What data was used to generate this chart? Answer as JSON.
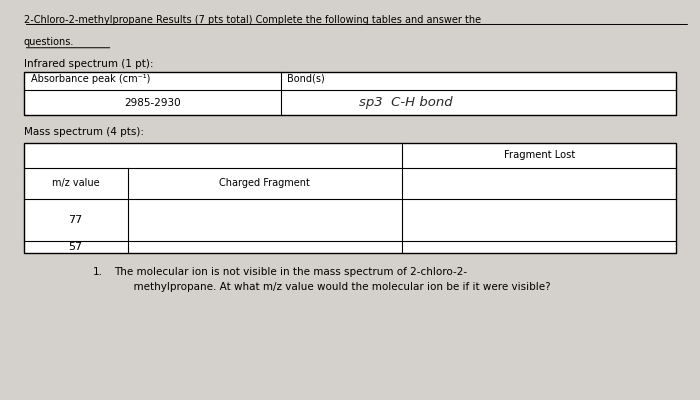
{
  "background_color": "#d4d0cb",
  "title_line1": "2-Chloro-2-methylpropane Results (7 pts total) Complete the following tables and answer the",
  "title_line2": "questions.",
  "ir_label": "Infrared spectrum (1 pt):",
  "ir_col1_header": "Absorbance peak (cm⁻¹)",
  "ir_col2_header": "Bond(s)",
  "ir_row1_col1": "2985-2930",
  "ir_row1_col2_handwritten": "sp3  C-H bond",
  "mass_label": "Mass spectrum (4 pts):",
  "mass_col1_header": "m/z value",
  "mass_col2_header": "Charged Fragment",
  "mass_col3_header": "Fragment Lost",
  "mass_row1_col1": "77",
  "mass_row2_col1": "57",
  "question_num": "1.",
  "question_text": "The molecular ion is not visible in the mass spectrum of 2-chloro-2-\n      methylpropane. At what m/z value would the molecular ion be if it were visible?"
}
